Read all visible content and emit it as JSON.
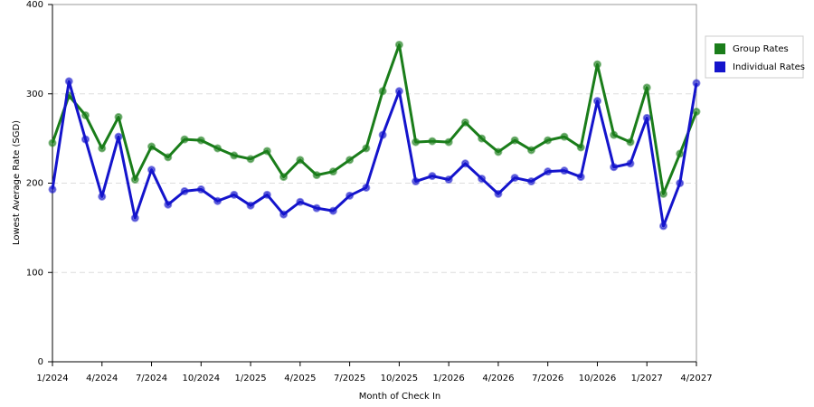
{
  "chart_data": {
    "type": "line",
    "x_label": "Month of Check In",
    "y_label": "Lowest Average Rate (SGD)",
    "categories": [
      "1/2024",
      null,
      null,
      "4/2024",
      null,
      null,
      "7/2024",
      null,
      null,
      "10/2024",
      null,
      null,
      "1/2025",
      null,
      null,
      "4/2025",
      null,
      null,
      "7/2025",
      null,
      null,
      "10/2025",
      null,
      null,
      "1/2026",
      null,
      null,
      "4/2026",
      null,
      null,
      "7/2026",
      null,
      null,
      "10/2026",
      null,
      null,
      "1/2027",
      null,
      null,
      "4/2027"
    ],
    "series": [
      {
        "name": "Group Rates",
        "color": "#1a7d1a",
        "values": [
          245,
          298,
          276,
          239,
          274,
          204,
          241,
          229,
          249,
          248,
          239,
          231,
          227,
          236,
          207,
          226,
          209,
          213,
          226,
          239,
          303,
          355,
          246,
          247,
          246,
          268,
          250,
          235,
          248,
          237,
          248,
          252,
          240,
          333,
          254,
          246,
          307,
          188,
          233,
          280
        ]
      },
      {
        "name": "Individual Rates",
        "color": "#1414cc",
        "values": [
          193,
          314,
          249,
          185,
          252,
          161,
          215,
          176,
          191,
          193,
          180,
          187,
          175,
          187,
          165,
          179,
          172,
          169,
          186,
          195,
          254,
          303,
          202,
          208,
          204,
          222,
          205,
          188,
          206,
          202,
          213,
          214,
          207,
          292,
          218,
          222,
          273,
          152,
          200,
          312
        ]
      }
    ],
    "ylim": [
      0,
      400
    ],
    "yticks": [
      0,
      100,
      200,
      300,
      400
    ],
    "grid": true,
    "legend": "right"
  }
}
